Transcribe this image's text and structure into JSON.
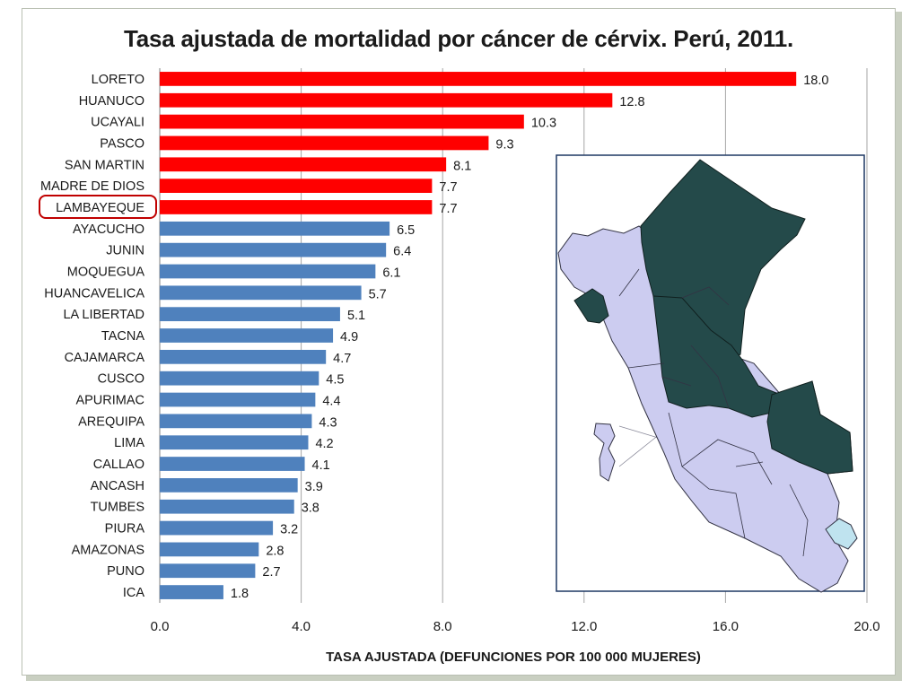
{
  "chart_data": {
    "type": "bar",
    "orientation": "horizontal",
    "title": "Tasa ajustada de mortalidad por cáncer de cérvix. Perú, 2011.",
    "xlabel": "TASA AJUSTADA (DEFUNCIONES POR 100 000 MUJERES)",
    "xlim": [
      0,
      20
    ],
    "xticks": [
      "0.0",
      "4.0",
      "8.0",
      "12.0",
      "16.0",
      "20.0"
    ],
    "grid": true,
    "categories": [
      "LORETO",
      "HUANUCO",
      "UCAYALI",
      "PASCO",
      "SAN MARTIN",
      "MADRE DE DIOS",
      "LAMBAYEQUE",
      "AYACUCHO",
      "JUNIN",
      "MOQUEGUA",
      "HUANCAVELICA",
      "LA LIBERTAD",
      "TACNA",
      "CAJAMARCA",
      "CUSCO",
      "APURIMAC",
      "AREQUIPA",
      "LIMA",
      "CALLAO",
      "ANCASH",
      "TUMBES",
      "PIURA",
      "AMAZONAS",
      "PUNO",
      "ICA"
    ],
    "values": [
      18.0,
      12.8,
      10.3,
      9.3,
      8.1,
      7.7,
      7.7,
      6.5,
      6.4,
      6.1,
      5.7,
      5.1,
      4.9,
      4.7,
      4.5,
      4.4,
      4.3,
      4.2,
      4.1,
      3.9,
      3.8,
      3.2,
      2.8,
      2.7,
      1.8
    ],
    "value_labels": [
      "18.0",
      "12.8",
      "10.3",
      "9.3",
      "8.1",
      "7.7",
      "7.7",
      "6.5",
      "6.4",
      "6.1",
      "5.7",
      "5.1",
      "4.9",
      "4.7",
      "4.5",
      "4.4",
      "4.3",
      "4.2",
      "4.1",
      "3.9",
      "3.8",
      "3.2",
      "2.8",
      "2.7",
      "1.8"
    ],
    "highlight_count": 7,
    "highlighted_category": "LAMBAYEQUE",
    "colors": {
      "highlight": "#ff0000",
      "normal": "#4f81bd",
      "grid": "#a6a6a6",
      "circle": "#c00000"
    }
  },
  "inset_map": {
    "caption": "",
    "colors": {
      "high": "#244a4a",
      "low": "#ccccf0",
      "highlight": "#bfe3ef",
      "border": "#1f3864"
    }
  }
}
